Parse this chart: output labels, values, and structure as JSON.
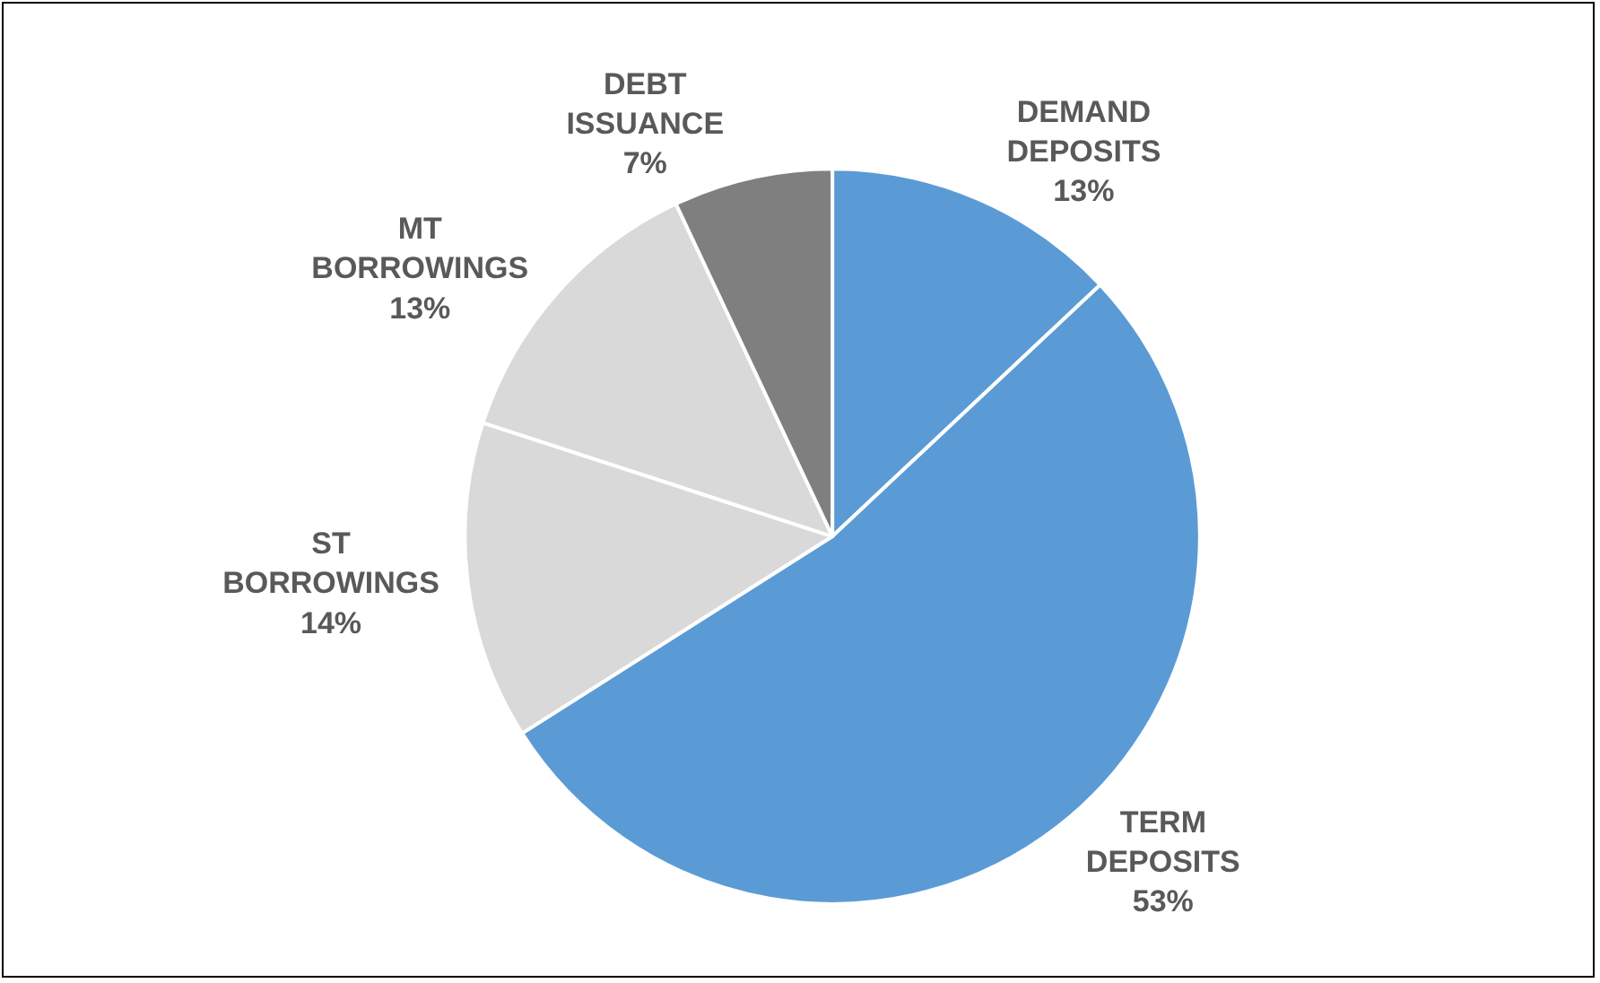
{
  "chart_data": {
    "type": "pie",
    "categories": [
      "DEMAND DEPOSITS",
      "TERM DEPOSITS",
      "ST BORROWINGS",
      "MT BORROWINGS",
      "DEBT ISSUANCE"
    ],
    "values": [
      13,
      53,
      14,
      13,
      7
    ],
    "value_labels": [
      "13%",
      "53%",
      "14%",
      "13%",
      "7%"
    ],
    "colors": [
      "#5b9bd5",
      "#5b9bd5",
      "#d9d9d9",
      "#d9d9d9",
      "#7f7f7f"
    ],
    "legend": false
  }
}
